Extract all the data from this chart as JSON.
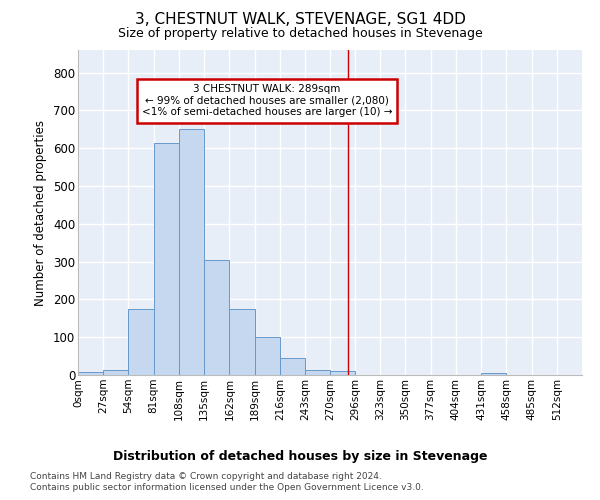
{
  "title": "3, CHESTNUT WALK, STEVENAGE, SG1 4DD",
  "subtitle": "Size of property relative to detached houses in Stevenage",
  "xlabel": "Distribution of detached houses by size in Stevenage",
  "ylabel": "Number of detached properties",
  "bar_color": "#c5d8f0",
  "bar_edge_color": "#6699cc",
  "background_color": "#e8eef8",
  "grid_color": "#ffffff",
  "annotation_line_color": "#cc0000",
  "annotation_property_value": 289,
  "annotation_text_line1": "3 CHESTNUT WALK: 289sqm",
  "annotation_text_line2": "← 99% of detached houses are smaller (2,080)",
  "annotation_text_line3": "<1% of semi-detached houses are larger (10) →",
  "annotation_box_color": "#cc0000",
  "bin_edges": [
    0,
    27,
    54,
    81,
    108,
    135,
    162,
    189,
    216,
    243,
    270,
    296,
    323,
    350,
    377,
    404,
    431,
    458,
    485,
    512,
    539
  ],
  "bar_heights": [
    7,
    12,
    175,
    615,
    650,
    305,
    175,
    100,
    45,
    13,
    10,
    1,
    0,
    0,
    0,
    0,
    5,
    0,
    0,
    0
  ],
  "ylim": [
    0,
    860
  ],
  "yticks": [
    0,
    100,
    200,
    300,
    400,
    500,
    600,
    700,
    800
  ],
  "footer_line1": "Contains HM Land Registry data © Crown copyright and database right 2024.",
  "footer_line2": "Contains public sector information licensed under the Open Government Licence v3.0."
}
